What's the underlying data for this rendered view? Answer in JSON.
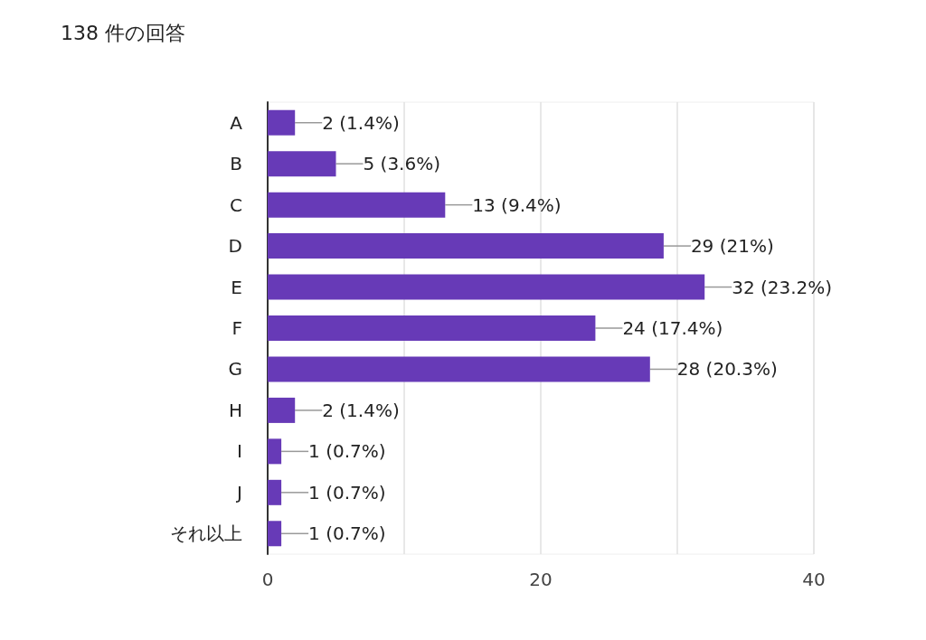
{
  "chart_data": {
    "type": "bar",
    "orientation": "horizontal",
    "title": "138 件の回答",
    "categories": [
      "A",
      "B",
      "C",
      "D",
      "E",
      "F",
      "G",
      "H",
      "I",
      "J",
      "それ以上"
    ],
    "values": [
      2,
      5,
      13,
      29,
      32,
      24,
      28,
      2,
      1,
      1,
      1
    ],
    "value_labels": [
      "2 (1.4%)",
      "5 (3.6%)",
      "13 (9.4%)",
      "29 (21%)",
      "32 (23.2%)",
      "24 (17.4%)",
      "28 (20.3%)",
      "2 (1.4%)",
      "1 (0.7%)",
      "1 (0.7%)",
      "1 (0.7%)"
    ],
    "color": "#673ab7",
    "xlim": [
      0,
      40
    ],
    "xticks": [
      0,
      {
        "value": 10,
        "label": null
      },
      20,
      {
        "value": 30,
        "label": null
      },
      40
    ],
    "grid": "x"
  }
}
